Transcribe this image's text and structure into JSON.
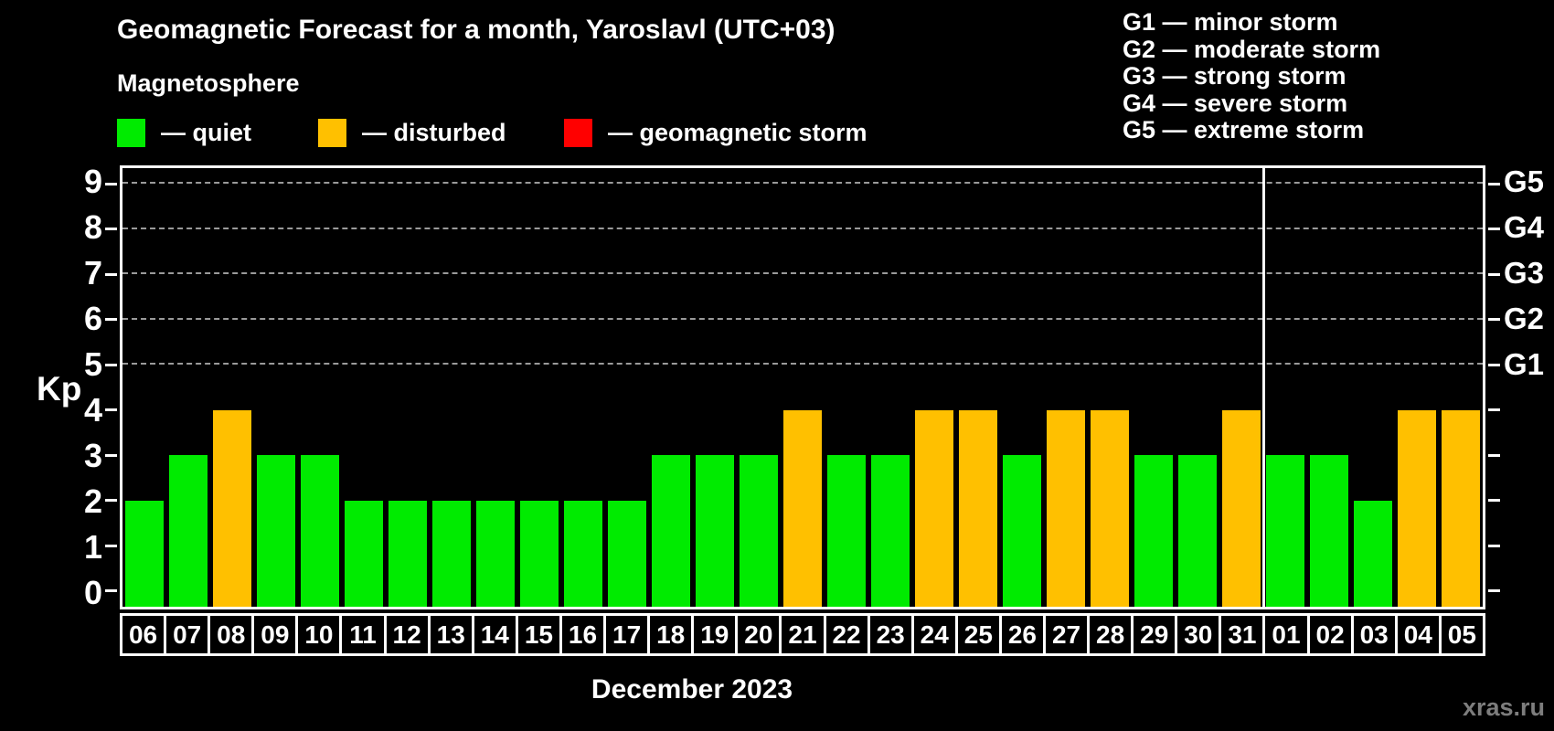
{
  "header": {
    "title": "Geomagnetic Forecast for a month, Yaroslavl (UTC+03)",
    "subtitle": "Magnetosphere"
  },
  "legend": {
    "items": [
      {
        "name": "quiet",
        "label": "— quiet",
        "color": "#00EB00"
      },
      {
        "name": "disturbed",
        "label": "— disturbed",
        "color": "#FFC000"
      },
      {
        "name": "storm",
        "label": "— geomagnetic storm",
        "color": "#FF0000"
      }
    ]
  },
  "g_legend": [
    "G1 — minor storm",
    "G2 — moderate storm",
    "G3 — strong storm",
    "G4 — severe storm",
    "G5 — extreme storm"
  ],
  "chart_data": {
    "type": "bar",
    "title": "Geomagnetic Forecast for a month, Yaroslavl (UTC+03)",
    "xlabel": "December 2023",
    "ylabel": "Kp",
    "categories": [
      "06",
      "07",
      "08",
      "09",
      "10",
      "11",
      "12",
      "13",
      "14",
      "15",
      "16",
      "17",
      "18",
      "19",
      "20",
      "21",
      "22",
      "23",
      "24",
      "25",
      "26",
      "27",
      "28",
      "29",
      "30",
      "31",
      "01",
      "02",
      "03",
      "04",
      "05"
    ],
    "values": [
      2,
      3,
      4,
      3,
      3,
      2,
      2,
      2,
      2,
      2,
      2,
      2,
      3,
      3,
      3,
      4,
      3,
      3,
      4,
      4,
      3,
      4,
      4,
      3,
      3,
      4,
      3,
      3,
      2,
      4,
      4
    ],
    "statuses": [
      "quiet",
      "quiet",
      "disturbed",
      "quiet",
      "quiet",
      "quiet",
      "quiet",
      "quiet",
      "quiet",
      "quiet",
      "quiet",
      "quiet",
      "quiet",
      "quiet",
      "quiet",
      "disturbed",
      "quiet",
      "quiet",
      "disturbed",
      "disturbed",
      "quiet",
      "disturbed",
      "disturbed",
      "quiet",
      "quiet",
      "disturbed",
      "quiet",
      "quiet",
      "quiet",
      "disturbed",
      "disturbed"
    ],
    "colors": {
      "quiet": "#00EB00",
      "disturbed": "#FFC000",
      "storm": "#FF0000"
    },
    "ylim": [
      -0.35,
      9.35
    ],
    "yticks": [
      "0",
      "1",
      "2",
      "3",
      "4",
      "5",
      "6",
      "7",
      "8",
      "9"
    ],
    "gridlines": [
      5,
      6,
      7,
      8,
      9
    ],
    "right_axis": [
      {
        "label": "G1",
        "kp": 5
      },
      {
        "label": "G2",
        "kp": 6
      },
      {
        "label": "G3",
        "kp": 7
      },
      {
        "label": "G4",
        "kp": 8
      },
      {
        "label": "G5",
        "kp": 9
      }
    ],
    "month_separator_index": 26,
    "grid": "dashed, Kp 5–9 only",
    "legend_position": "top"
  },
  "watermark": "xras.ru"
}
